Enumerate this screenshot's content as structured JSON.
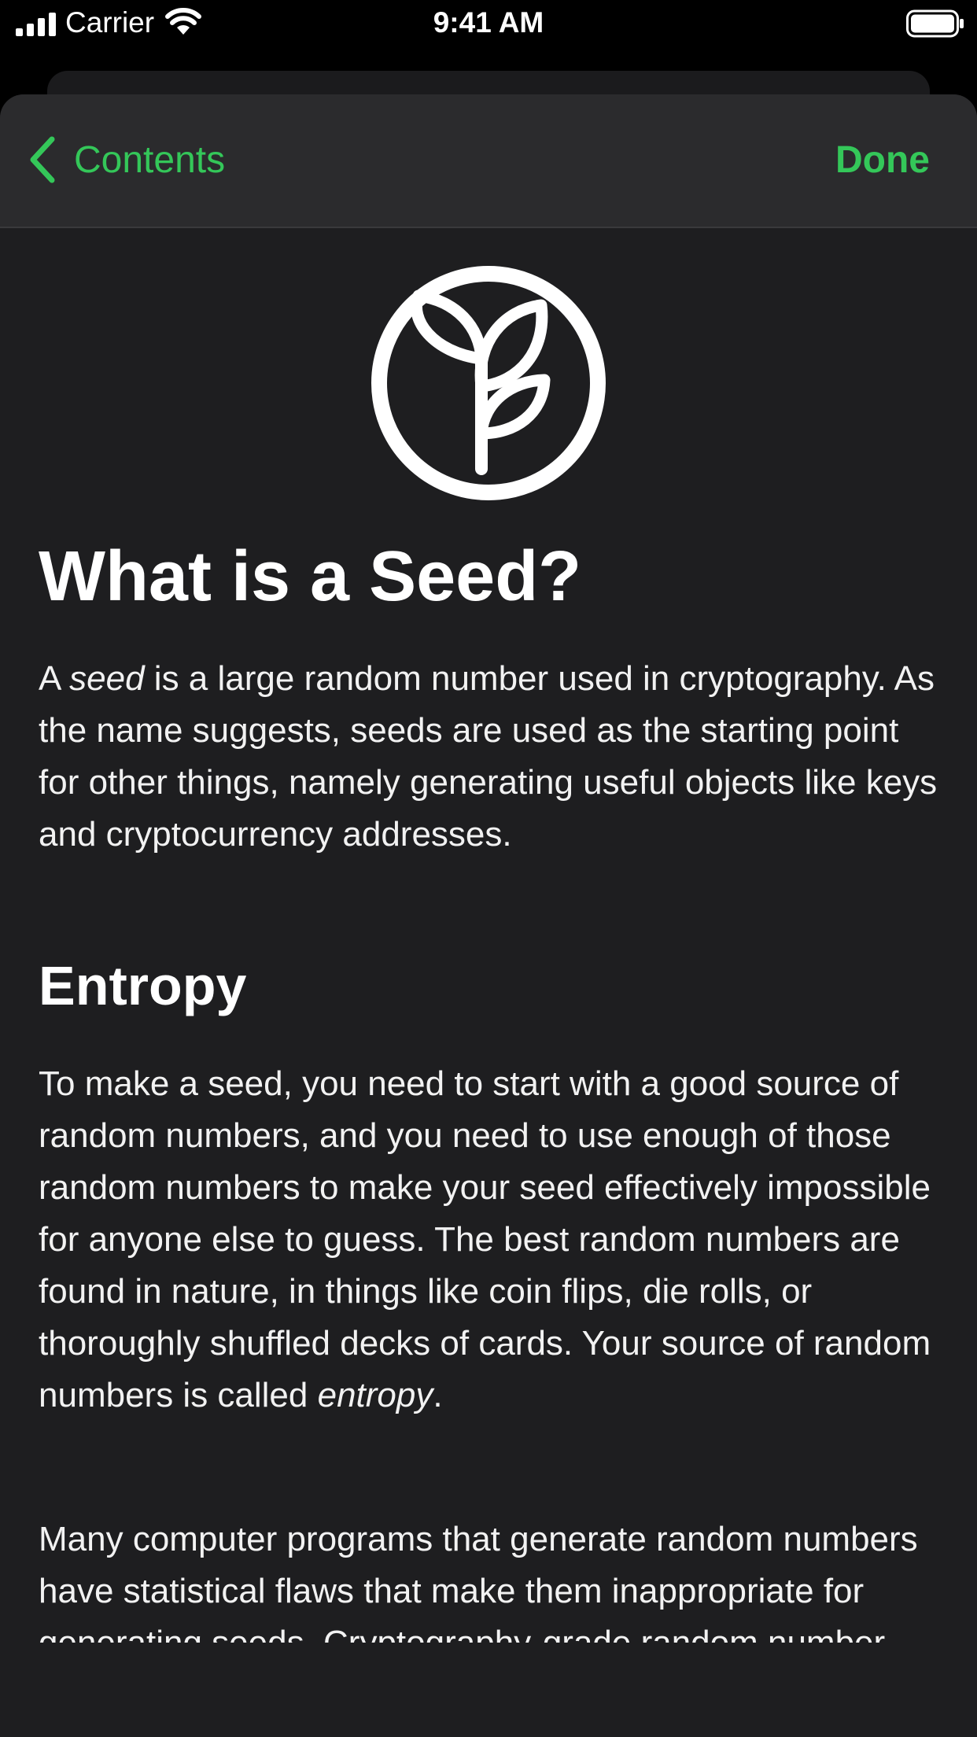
{
  "status_bar": {
    "carrier": "Carrier",
    "time": "9:41 AM"
  },
  "navbar": {
    "back_label": "Contents",
    "done_label": "Done",
    "accent_color": "#34c759"
  },
  "article": {
    "icon": "seedling-icon",
    "title": "What is a Seed?",
    "p1": {
      "before": "A ",
      "em": "seed",
      "after": " is a large random number used in cryptography. As the name suggests, seeds are used as the starting point for other things, namely generating useful objects like keys and cryptocurrency addresses."
    },
    "section_heading": "Entropy",
    "p2": {
      "before": "To make a seed, you need to start with a good source of random numbers, and you need to use enough of those random numbers to make your seed effectively impossible for anyone else to guess. The best random numbers are found in nature, in things like coin flips, die rolls, or thoroughly shuffled decks of cards. Your source of random numbers is called ",
      "em": "entropy",
      "after": "."
    },
    "p3": "Many computer programs that generate random numbers have statistical flaws that make them inappropriate for generating seeds. Cryptography-grade random number generators"
  }
}
